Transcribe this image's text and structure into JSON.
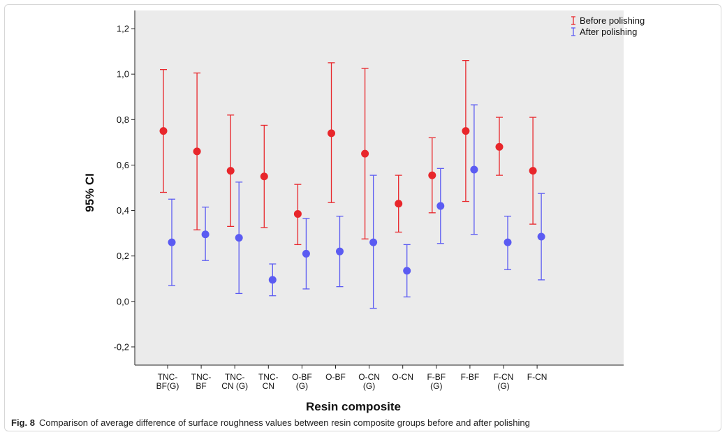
{
  "chart_data": {
    "type": "errorbar",
    "xlabel": "Resin composite",
    "ylabel": "95% CI",
    "ylim": [
      -0.28,
      1.28
    ],
    "yticks": [
      "-0,2",
      "0,0",
      "0,2",
      "0,4",
      "0,6",
      "0,8",
      "1,0",
      "1,2"
    ],
    "ytick_values": [
      -0.2,
      0.0,
      0.2,
      0.4,
      0.6,
      0.8,
      1.0,
      1.2
    ],
    "grid": false,
    "legend_position": "top-right",
    "categories": [
      [
        "TNC-",
        "BF(G)"
      ],
      [
        "TNC-",
        "BF"
      ],
      [
        "TNC-",
        "CN (G)"
      ],
      [
        "TNC-",
        "CN"
      ],
      [
        "O-BF",
        "(G)"
      ],
      [
        "O-BF"
      ],
      [
        "O-CN",
        "(G)"
      ],
      [
        "O-CN"
      ],
      [
        "F-BF",
        "(G)"
      ],
      [
        "F-BF"
      ],
      [
        "F-CN",
        "(G)"
      ],
      [
        "F-CN"
      ]
    ],
    "series": [
      {
        "name": "Before polishing",
        "color": "#e8262b",
        "mean": [
          0.75,
          0.66,
          0.575,
          0.55,
          0.385,
          0.74,
          0.65,
          0.43,
          0.555,
          0.75,
          0.68,
          0.575
        ],
        "lower": [
          0.48,
          0.315,
          0.33,
          0.325,
          0.25,
          0.435,
          0.275,
          0.305,
          0.39,
          0.44,
          0.555,
          0.34
        ],
        "upper": [
          1.02,
          1.005,
          0.82,
          0.775,
          0.515,
          1.05,
          1.025,
          0.555,
          0.72,
          1.06,
          0.81,
          0.81
        ]
      },
      {
        "name": "After polishing",
        "color": "#5b5bf2",
        "mean": [
          0.26,
          0.295,
          0.28,
          0.095,
          0.21,
          0.22,
          0.26,
          0.135,
          0.42,
          0.58,
          0.26,
          0.285
        ],
        "lower": [
          0.07,
          0.18,
          0.035,
          0.025,
          0.055,
          0.065,
          -0.03,
          0.02,
          0.255,
          0.295,
          0.14,
          0.095
        ],
        "upper": [
          0.45,
          0.415,
          0.525,
          0.165,
          0.365,
          0.375,
          0.555,
          0.25,
          0.585,
          0.865,
          0.375,
          0.475
        ]
      }
    ]
  },
  "caption": {
    "label": "Fig. 8",
    "text": "Comparison of average difference of surface roughness values between resin composite groups before and after polishing"
  },
  "colors": {
    "plot_background": "#ebebeb",
    "axis": "#222222"
  }
}
